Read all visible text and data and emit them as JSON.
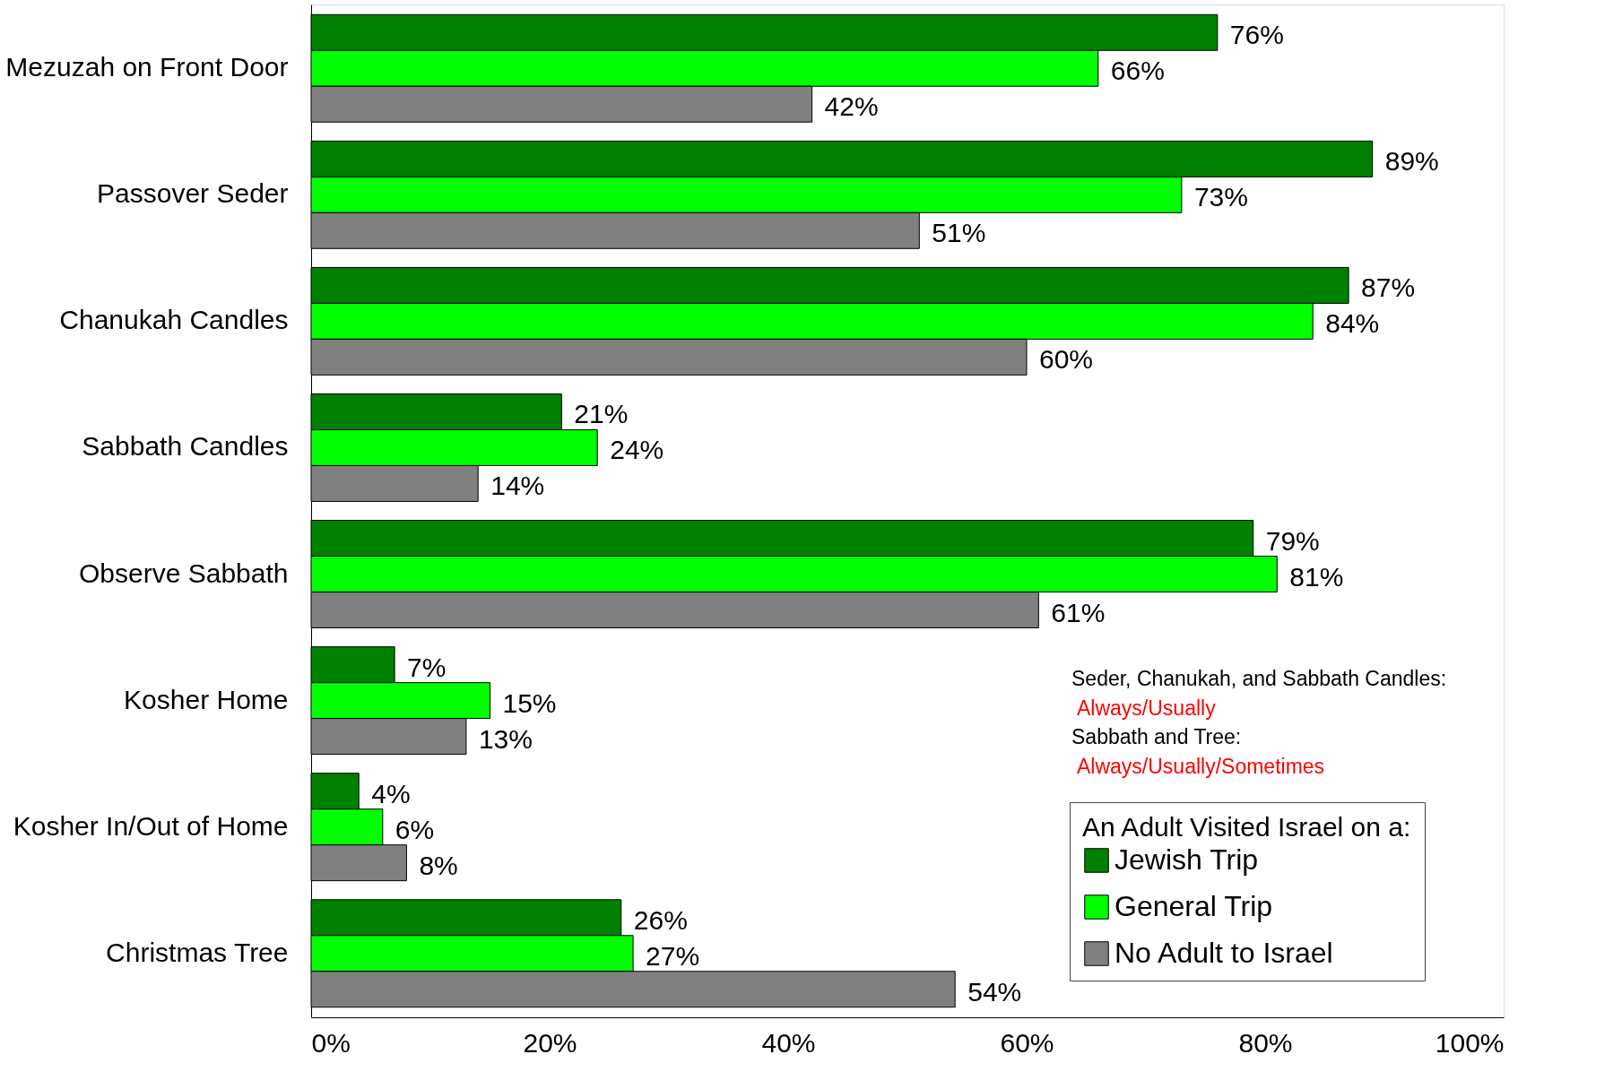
{
  "chart_data": {
    "type": "bar",
    "orientation": "horizontal",
    "categories": [
      "Mezuzah on Front Door",
      "Passover Seder",
      "Chanukah Candles",
      "Sabbath Candles",
      "Observe Sabbath",
      "Kosher Home",
      "Kosher In/Out of Home",
      "Christmas Tree"
    ],
    "series": [
      {
        "name": "Jewish Trip",
        "color": "#008000",
        "values": [
          76,
          89,
          87,
          21,
          79,
          7,
          4,
          26
        ],
        "value_labels": [
          "76%",
          "89%",
          "87%",
          "21%",
          "79%",
          "7%",
          "4%",
          "26%"
        ]
      },
      {
        "name": "General Trip",
        "color": "#00ff00",
        "values": [
          66,
          73,
          84,
          24,
          81,
          15,
          6,
          27
        ],
        "value_labels": [
          "66%",
          "73%",
          "84%",
          "24%",
          "81%",
          "15%",
          "6%",
          "27%"
        ]
      },
      {
        "name": "No Adult to Israel",
        "color": "#808080",
        "values": [
          42,
          51,
          60,
          14,
          61,
          13,
          8,
          54
        ],
        "value_labels": [
          "42%",
          "51%",
          "60%",
          "14%",
          "61%",
          "13%",
          "8%",
          "54%"
        ]
      }
    ],
    "xlim": [
      0,
      100
    ],
    "xticks": [
      {
        "value": 0,
        "label": "0%"
      },
      {
        "value": 20,
        "label": "20%"
      },
      {
        "value": 40,
        "label": "40%"
      },
      {
        "value": 60,
        "label": "60%"
      },
      {
        "value": 80,
        "label": "80%"
      },
      {
        "value": 100,
        "label": "100%"
      }
    ],
    "legend_title": "An Adult Visited Israel on a:",
    "legend": "bottom right",
    "grid": false,
    "annotations": [
      "Seder, Chanukah, and Sabbath Candles:",
      "Always/Usually",
      "Sabbath and Tree:",
      "Always/Usually/Sometimes"
    ]
  }
}
